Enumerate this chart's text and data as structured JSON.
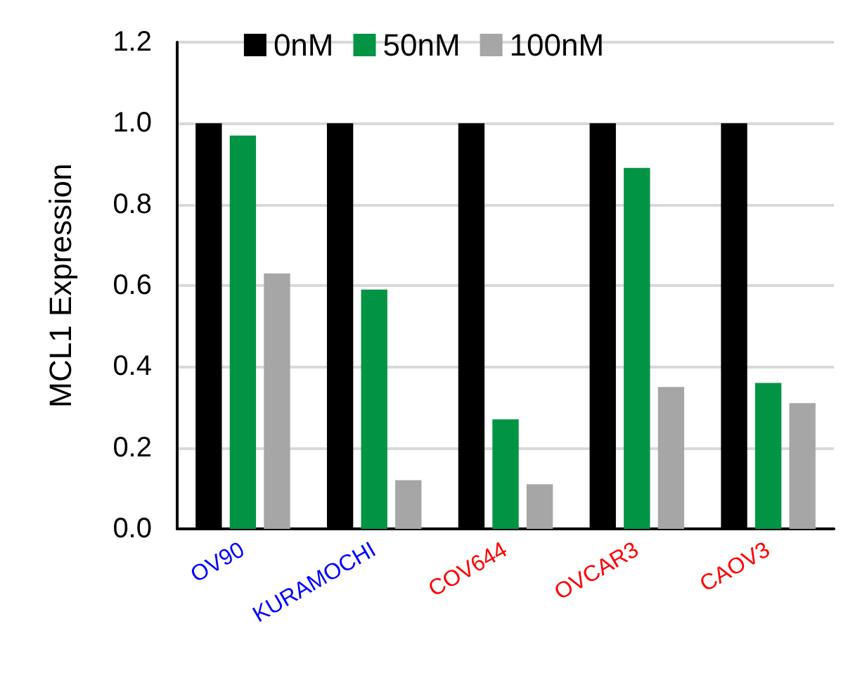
{
  "chart_data": {
    "type": "bar",
    "ylabel": "MCL1 Expression",
    "categories": [
      "OV90",
      "KURAMOCHI",
      "COV644",
      "OVCAR3",
      "CAOV3"
    ],
    "series": [
      {
        "name": "0nM",
        "color": "#000000",
        "values": [
          1.0,
          1.0,
          1.0,
          1.0,
          1.0
        ]
      },
      {
        "name": "50nM",
        "color": "#009444",
        "values": [
          0.97,
          0.59,
          0.27,
          0.89,
          0.36
        ]
      },
      {
        "name": "100nM",
        "color": "#a6a6a6",
        "values": [
          0.63,
          0.12,
          0.11,
          0.35,
          0.31
        ]
      }
    ],
    "ylim": [
      0,
      1.2
    ],
    "yticks": [
      {
        "value": 0,
        "label": "0.0"
      },
      {
        "value": 0.2,
        "label": "0.2"
      },
      {
        "value": 0.4,
        "label": "0.4"
      },
      {
        "value": 0.6,
        "label": "0.6"
      },
      {
        "value": 0.8,
        "label": "0.8"
      },
      {
        "value": 1.0,
        "label": "1.0"
      },
      {
        "value": 1.2,
        "label": "1.2"
      }
    ],
    "grid": "y",
    "legend": "top"
  }
}
